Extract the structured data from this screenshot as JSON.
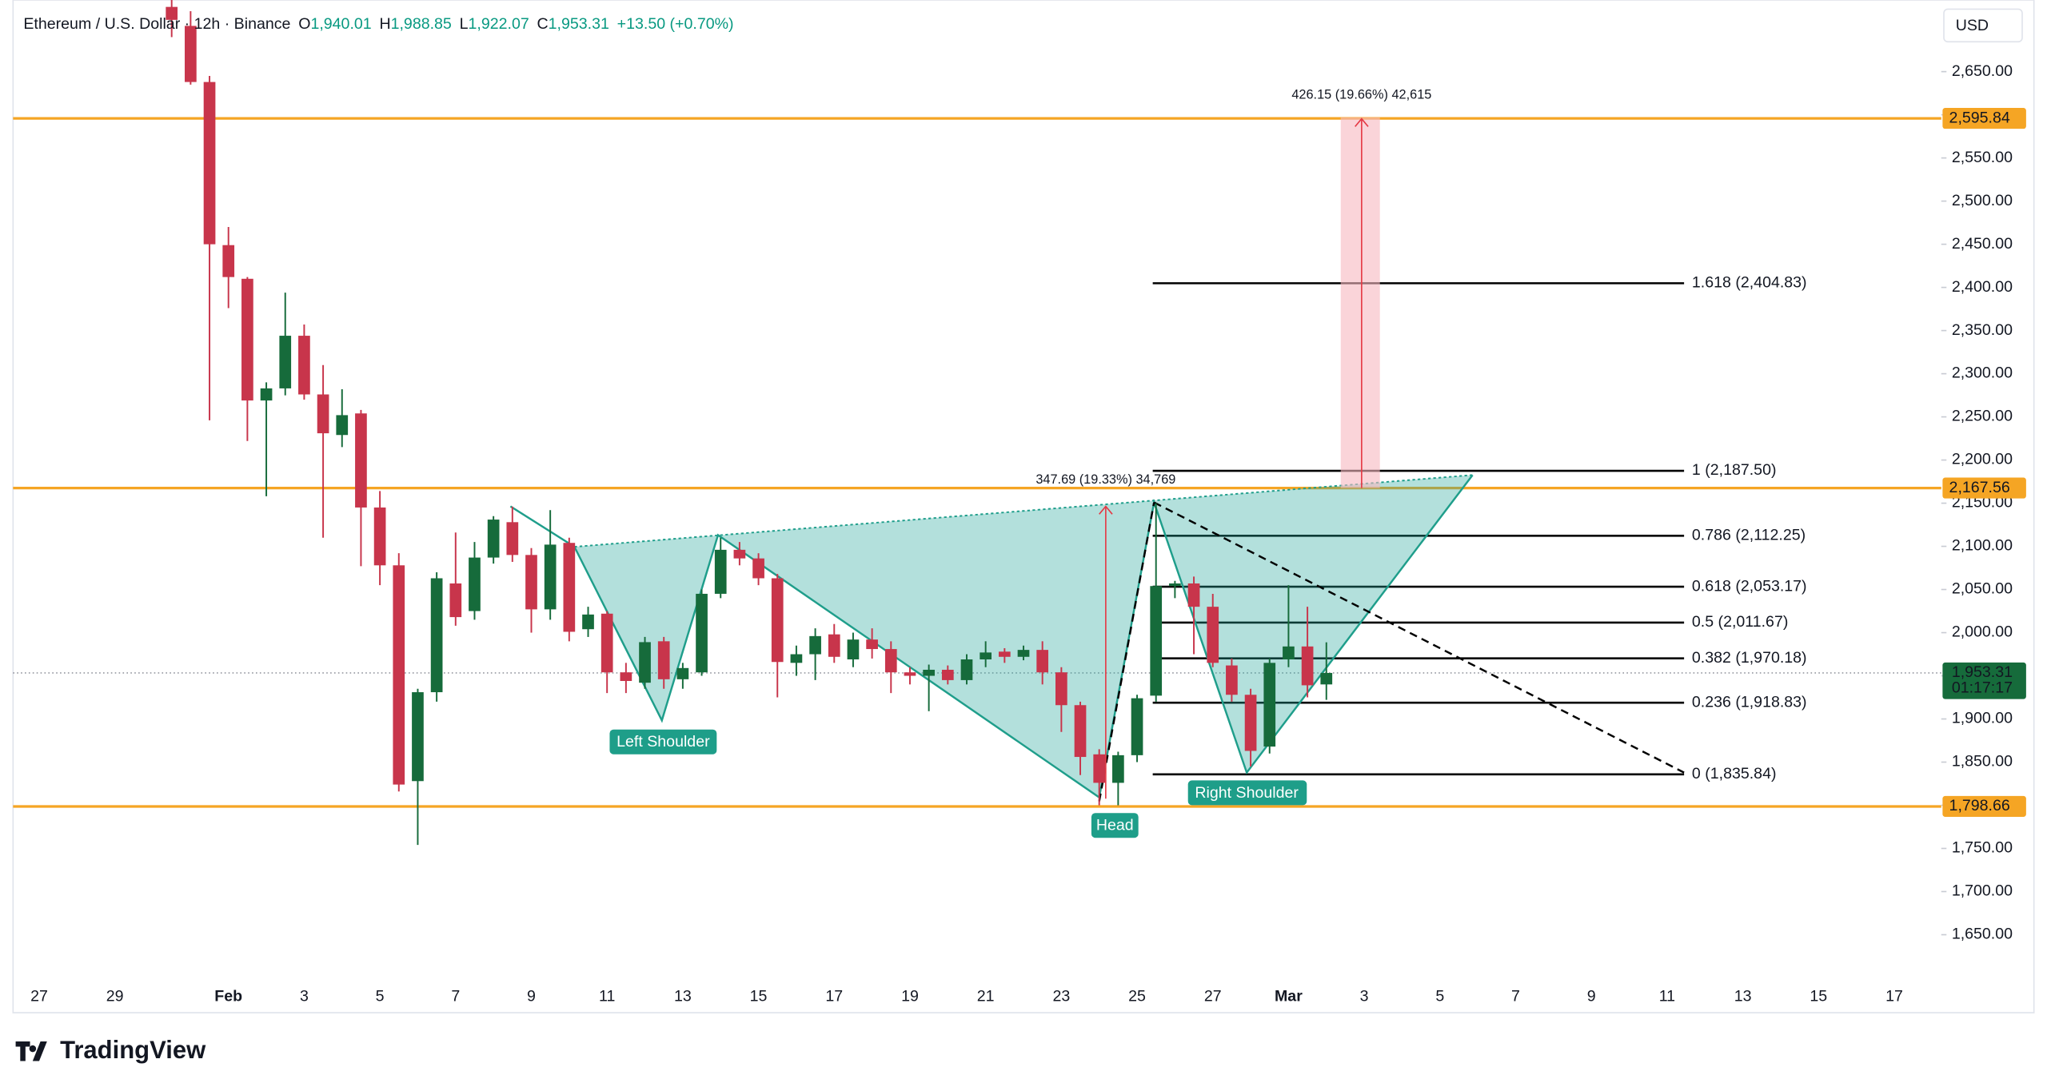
{
  "header": {
    "title": "Ethereum / U.S. Dollar · 12h · Binance",
    "ohlc": [
      {
        "key": "O",
        "value": "1,940.01"
      },
      {
        "key": "H",
        "value": "1,988.85"
      },
      {
        "key": "L",
        "value": "1,922.07"
      },
      {
        "key": "C",
        "value": "1,953.31"
      }
    ],
    "change": "+13.50 (+0.70%)"
  },
  "chart_data": {
    "type": "candlestick",
    "categories": [
      "27",
      null,
      null,
      null,
      "29",
      null,
      null,
      null,
      null,
      null,
      "Feb",
      null,
      null,
      null,
      "3",
      null,
      null,
      null,
      "5",
      null,
      null,
      null,
      "7",
      null,
      null,
      null,
      "9",
      null,
      null,
      null,
      "11",
      null,
      null,
      null,
      "13",
      null,
      null,
      null,
      "15",
      null,
      null,
      null,
      "17",
      null,
      null,
      null,
      "19",
      null,
      null,
      null,
      "21",
      null,
      null,
      null,
      "23",
      null,
      null,
      null,
      "25",
      null,
      null,
      null,
      "27",
      null,
      null,
      null,
      "Mar",
      null,
      null,
      null,
      "3",
      null,
      null,
      null,
      "5",
      null,
      null,
      null,
      "7",
      null,
      null,
      null,
      "9",
      null,
      null,
      null,
      "11",
      null,
      null,
      null,
      "13",
      null,
      null,
      null,
      "15",
      null,
      null,
      null,
      "17"
    ],
    "open": [
      null,
      null,
      null,
      null,
      null,
      null,
      null,
      2725,
      2703,
      2638,
      2449,
      2410,
      2269,
      2283,
      2344,
      2276,
      2229,
      2254,
      2145,
      2078,
      1828,
      1931,
      2057,
      2025,
      2087,
      2128,
      2090,
      2027,
      2104,
      2004,
      2022,
      1954,
      1942,
      1990,
      1946,
      1954,
      2045,
      2096,
      2086,
      2063,
      1965,
      1975,
      1998,
      1969,
      1992,
      1981,
      1954,
      1950,
      1957,
      1945,
      1969,
      1978,
      1972,
      1980,
      1954,
      1916,
      1859,
      1826,
      1858,
      1927,
      2054,
      2057,
      2030,
      1962,
      1928,
      1868,
      1969,
      1984,
      1940.01,
      null,
      null,
      null,
      null,
      null,
      null,
      null,
      null,
      null,
      null,
      null,
      null,
      null,
      null,
      null,
      null,
      null,
      null,
      null,
      null,
      null,
      null,
      null,
      null,
      null,
      null,
      null,
      null,
      null,
      null
    ],
    "high": [
      null,
      null,
      null,
      null,
      null,
      null,
      null,
      2733,
      2720,
      2645,
      2470,
      2412,
      2290,
      2394,
      2357,
      2310,
      2282,
      2258,
      2164,
      2092,
      1935,
      2070,
      2116,
      2105,
      2135,
      2146,
      2098,
      2142,
      2110,
      2030,
      2025,
      1965,
      1995,
      1995,
      1965,
      2050,
      2110,
      2105,
      2092,
      2068,
      1985,
      2005,
      2010,
      2000,
      2005,
      1990,
      1960,
      1963,
      1962,
      1975,
      1990,
      1982,
      1985,
      1990,
      1960,
      1920,
      1865,
      1862,
      1928,
      2150,
      2060,
      2065,
      2045,
      1970,
      1935,
      1970,
      2055,
      2030,
      1988.85,
      null,
      null,
      null,
      null,
      null,
      null,
      null,
      null,
      null,
      null,
      null,
      null,
      null,
      null,
      null,
      null,
      null,
      null,
      null,
      null,
      null,
      null,
      null,
      null,
      null,
      null,
      null,
      null,
      null,
      null
    ],
    "low": [
      null,
      null,
      null,
      null,
      null,
      null,
      null,
      2690,
      2635,
      2246,
      2376,
      2222,
      2158,
      2275,
      2270,
      2110,
      2215,
      2077,
      2055,
      1816,
      1754,
      1920,
      2008,
      2015,
      2080,
      2082,
      2000,
      2015,
      1990,
      1995,
      1930,
      1930,
      1935,
      1935,
      1935,
      1950,
      2040,
      2078,
      2055,
      1925,
      1950,
      1945,
      1965,
      1960,
      1970,
      1930,
      1940,
      1909,
      1940,
      1940,
      1960,
      1965,
      1968,
      1940,
      1885,
      1835,
      1800,
      1800,
      1850,
      1920,
      2040,
      1975,
      1960,
      1920,
      1845,
      1860,
      1960,
      1925,
      1922.07,
      null,
      null,
      null,
      null,
      null,
      null,
      null,
      null,
      null,
      null,
      null,
      null,
      null,
      null,
      null,
      null,
      null,
      null,
      null,
      null,
      null,
      null,
      null,
      null,
      null,
      null,
      null,
      null,
      null,
      null
    ],
    "close": [
      null,
      null,
      null,
      null,
      null,
      null,
      null,
      2710,
      2638,
      2450,
      2412,
      2269,
      2283,
      2344,
      2276,
      2231,
      2252,
      2145,
      2078,
      1824,
      1931,
      2063,
      2018,
      2087,
      2131,
      2090,
      2027,
      2102,
      2001,
      2021,
      1954,
      1944,
      1989,
      1946,
      1959,
      2045,
      2096,
      2086,
      2063,
      1966,
      1975,
      1996,
      1972,
      1992,
      1981,
      1954,
      1950,
      1957,
      1945,
      1969,
      1977,
      1972,
      1980,
      1954,
      1916,
      1856,
      1826,
      1858,
      1924,
      2054,
      2057,
      2030,
      1965,
      1928,
      1863,
      1965,
      1984,
      1939,
      1953.31,
      null,
      null,
      null,
      null,
      null,
      null,
      null,
      null,
      null,
      null,
      null,
      null,
      null,
      null,
      null,
      null,
      null,
      null,
      null,
      null,
      null,
      null,
      null,
      null,
      null,
      null,
      null,
      null,
      null,
      null
    ],
    "up_color": "#166b3b",
    "down_color": "#c8354b",
    "currency": "USD",
    "ylim": [
      1602,
      2733
    ],
    "yticks": [
      {
        "value": 1650,
        "label": "1,650.00"
      },
      {
        "value": 1700,
        "label": "1,700.00"
      },
      {
        "value": 1750,
        "label": "1,750.00"
      },
      {
        "value": 1800,
        "label": "1,800.00"
      },
      {
        "value": 1850,
        "label": "1,850.00"
      },
      {
        "value": 1900,
        "label": "1,900.00"
      },
      {
        "value": 1950,
        "label": "1,950.00"
      },
      {
        "value": 2000,
        "label": "2,000.00"
      },
      {
        "value": 2050,
        "label": "2,050.00"
      },
      {
        "value": 2100,
        "label": "2,100.00"
      },
      {
        "value": 2150,
        "label": "2,150.00"
      },
      {
        "value": 2200,
        "label": "2,200.00"
      },
      {
        "value": 2250,
        "label": "2,250.00"
      },
      {
        "value": 2300,
        "label": "2,300.00"
      },
      {
        "value": 2350,
        "label": "2,350.00"
      },
      {
        "value": 2400,
        "label": "2,400.00"
      },
      {
        "value": 2450,
        "label": "2,450.00"
      },
      {
        "value": 2500,
        "label": "2,500.00"
      },
      {
        "value": 2550,
        "label": "2,550.00"
      },
      {
        "value": 2600,
        "label": "2,600.00"
      },
      {
        "value": 2650,
        "label": "2,650.00"
      }
    ],
    "levels": [
      {
        "value": 2595.84,
        "label": "2,595.84"
      },
      {
        "value": 2167.56,
        "label": "2,167.56"
      },
      {
        "value": 1798.66,
        "label": "1,798.66"
      }
    ],
    "level_color": "#f5a524",
    "last_price": {
      "value": 1953.31,
      "label": "1,953.31",
      "timer": "01:17:17"
    },
    "fibonacci": [
      {
        "value": 2404.83,
        "label": "1.618 (2,404.83)"
      },
      {
        "value": 2187.5,
        "label": "1 (2,187.50)"
      },
      {
        "value": 2112.25,
        "label": "0.786 (2,112.25)"
      },
      {
        "value": 2053.17,
        "label": "0.618 (2,053.17)"
      },
      {
        "value": 2011.67,
        "label": "0.5 (2,011.67)"
      },
      {
        "value": 1970.18,
        "label": "0.382 (1,970.18)"
      },
      {
        "value": 1918.83,
        "label": "0.236 (1,918.83)"
      },
      {
        "value": 1835.84,
        "label": "0 (1,835.84)"
      }
    ],
    "annotations": [
      "Left Shoulder",
      "Head",
      "Right Shoulder"
    ],
    "measurements": [
      "347.69 (19.33%) 34,769",
      "426.15 (19.66%) 42,615"
    ]
  },
  "footer": {
    "logo": "TradingView"
  }
}
